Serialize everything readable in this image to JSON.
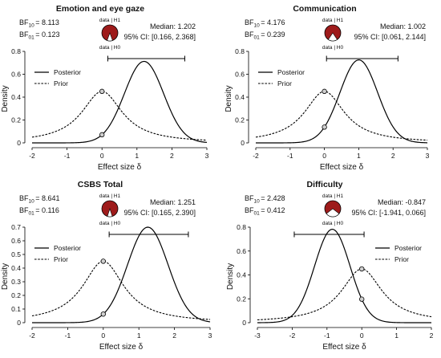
{
  "chart_data": [
    {
      "type": "line",
      "title": "Emotion and eye gaze",
      "xlabel": "Effect size δ",
      "ylabel": "Density",
      "xlim": [
        -2,
        3
      ],
      "ylim": [
        0,
        0.8
      ],
      "xticks": [
        "-2",
        "-1",
        "0",
        "1",
        "2",
        "3"
      ],
      "yticks": [
        "0",
        "0.2",
        "0.4",
        "0.6",
        "0.8"
      ],
      "bf10_label": "BF",
      "bf10_sub": "10",
      "bf10_value": "= 8.113",
      "bf01_label": "BF",
      "bf01_sub": "01",
      "bf01_value": "= 0.123",
      "median_text": "Median: 1.202",
      "ci_text": "95% CI: [0.166, 2.368]",
      "median": 1.202,
      "ci": [
        0.166,
        2.368
      ],
      "posterior_sd": 0.56,
      "pie_h1_label": "data | H1",
      "pie_h0_label": "data | H0",
      "pie_h1_prob": 0.89,
      "legend": [
        "Posterior",
        "Prior"
      ],
      "legend_position": "top-left",
      "series": [
        {
          "name": "Posterior",
          "points": [
            [
              -2,
              0.0
            ],
            [
              -1,
              0.0
            ],
            [
              0,
              0.07
            ],
            [
              0.5,
              0.33
            ],
            [
              1.0,
              0.68
            ],
            [
              1.2,
              0.72
            ],
            [
              1.5,
              0.63
            ],
            [
              2.0,
              0.27
            ],
            [
              2.5,
              0.05
            ],
            [
              3,
              0.0
            ]
          ]
        },
        {
          "name": "Prior",
          "points": [
            [
              -2,
              0.05
            ],
            [
              -1,
              0.14
            ],
            [
              -0.5,
              0.31
            ],
            [
              0,
              0.45
            ],
            [
              0.5,
              0.31
            ],
            [
              1,
              0.14
            ],
            [
              2,
              0.05
            ],
            [
              3,
              0.02
            ]
          ]
        }
      ]
    },
    {
      "type": "line",
      "title": "Communication",
      "xlabel": "Effect size δ",
      "ylabel": "Density",
      "xlim": [
        -2,
        3
      ],
      "ylim": [
        0,
        0.8
      ],
      "xticks": [
        "-2",
        "-1",
        "0",
        "1",
        "2",
        "3"
      ],
      "yticks": [
        "0",
        "0.2",
        "0.4",
        "0.6",
        "0.8"
      ],
      "bf10_label": "BF",
      "bf10_sub": "10",
      "bf10_value": "= 4.176",
      "bf01_label": "BF",
      "bf01_sub": "01",
      "bf01_value": "= 0.239",
      "median_text": "Median: 1.002",
      "ci_text": "95% CI: [0.061, 2.144]",
      "median": 1.002,
      "ci": [
        0.061,
        2.144
      ],
      "posterior_sd": 0.55,
      "pie_h1_label": "data | H1",
      "pie_h0_label": "data | H0",
      "pie_h1_prob": 0.81,
      "legend": [
        "Posterior",
        "Prior"
      ],
      "legend_position": "top-left",
      "series": [
        {
          "name": "Posterior",
          "points": [
            [
              -2,
              0.0
            ],
            [
              -1,
              0.0
            ],
            [
              0,
              0.12
            ],
            [
              0.5,
              0.48
            ],
            [
              1.0,
              0.73
            ],
            [
              1.5,
              0.48
            ],
            [
              2.0,
              0.16
            ],
            [
              2.5,
              0.03
            ],
            [
              3,
              0.0
            ]
          ]
        },
        {
          "name": "Prior",
          "points": [
            [
              -2,
              0.05
            ],
            [
              -1,
              0.14
            ],
            [
              -0.5,
              0.31
            ],
            [
              0,
              0.45
            ],
            [
              0.5,
              0.31
            ],
            [
              1,
              0.14
            ],
            [
              2,
              0.05
            ],
            [
              3,
              0.02
            ]
          ]
        }
      ]
    },
    {
      "type": "line",
      "title": "CSBS Total",
      "xlabel": "Effect size δ",
      "ylabel": "Density",
      "xlim": [
        -2,
        3
      ],
      "ylim": [
        0,
        0.7
      ],
      "xticks": [
        "-2",
        "-1",
        "0",
        "1",
        "2",
        "3"
      ],
      "yticks": [
        "0",
        "0.1",
        "0.2",
        "0.3",
        "0.4",
        "0.5",
        "0.6",
        "0.7"
      ],
      "bf10_label": "BF",
      "bf10_sub": "10",
      "bf10_value": "= 8.641",
      "bf01_label": "BF",
      "bf01_sub": "01",
      "bf01_value": "= 0.116",
      "median_text": "Median: 1.251",
      "ci_text": "95% CI: [0.165, 2.390]",
      "median": 1.251,
      "ci": [
        0.165,
        2.39
      ],
      "posterior_sd": 0.57,
      "pie_h1_label": "data | H1",
      "pie_h0_label": "data | H0",
      "pie_h1_prob": 0.9,
      "legend": [
        "Posterior",
        "Prior"
      ],
      "legend_position": "top-left",
      "series": [
        {
          "name": "Posterior",
          "points": [
            [
              -2,
              0.0
            ],
            [
              -1,
              0.0
            ],
            [
              0,
              0.06
            ],
            [
              0.5,
              0.3
            ],
            [
              1.0,
              0.63
            ],
            [
              1.25,
              0.69
            ],
            [
              1.5,
              0.65
            ],
            [
              2.0,
              0.29
            ],
            [
              2.5,
              0.06
            ],
            [
              3,
              0.0
            ]
          ]
        },
        {
          "name": "Prior",
          "points": [
            [
              -2,
              0.05
            ],
            [
              -1,
              0.14
            ],
            [
              -0.5,
              0.31
            ],
            [
              0,
              0.45
            ],
            [
              0.5,
              0.31
            ],
            [
              1,
              0.14
            ],
            [
              2,
              0.05
            ],
            [
              3,
              0.02
            ]
          ]
        }
      ]
    },
    {
      "type": "line",
      "title": "Difficulty",
      "xlabel": "Effect size δ",
      "ylabel": "Density",
      "xlim": [
        -3,
        2
      ],
      "ylim": [
        0,
        0.8
      ],
      "xticks": [
        "-3",
        "-2",
        "-1",
        "0",
        "1",
        "2"
      ],
      "yticks": [
        "0",
        "0.2",
        "0.4",
        "0.6",
        "0.8"
      ],
      "bf10_label": "BF",
      "bf10_sub": "10",
      "bf10_value": "= 2.428",
      "bf01_label": "BF",
      "bf01_sub": "01",
      "bf01_value": "= 0.412",
      "median_text": "Median: -0.847",
      "ci_text": "95% CI: [-1.941, 0.066]",
      "median": -0.847,
      "ci": [
        -1.941,
        0.066
      ],
      "posterior_sd": 0.51,
      "pie_h1_label": "data | H1",
      "pie_h0_label": "data | H0",
      "pie_h1_prob": 0.71,
      "legend": [
        "Posterior",
        "Prior"
      ],
      "legend_position": "top-right",
      "series": [
        {
          "name": "Posterior",
          "points": [
            [
              -3,
              0.0
            ],
            [
              -2,
              0.06
            ],
            [
              -1.5,
              0.35
            ],
            [
              -0.85,
              0.78
            ],
            [
              -0.5,
              0.67
            ],
            [
              0,
              0.19
            ],
            [
              0.5,
              0.03
            ],
            [
              1,
              0.0
            ],
            [
              2,
              0.0
            ]
          ]
        },
        {
          "name": "Prior",
          "points": [
            [
              -3,
              0.02
            ],
            [
              -2,
              0.05
            ],
            [
              -1,
              0.14
            ],
            [
              -0.5,
              0.31
            ],
            [
              0,
              0.45
            ],
            [
              0.5,
              0.31
            ],
            [
              1,
              0.14
            ],
            [
              2,
              0.05
            ]
          ]
        }
      ]
    }
  ],
  "colors": {
    "pie_h1": "#9e1b1b",
    "pie_h0": "#ffffff",
    "line": "#000000",
    "point": "#cfcfcf"
  }
}
